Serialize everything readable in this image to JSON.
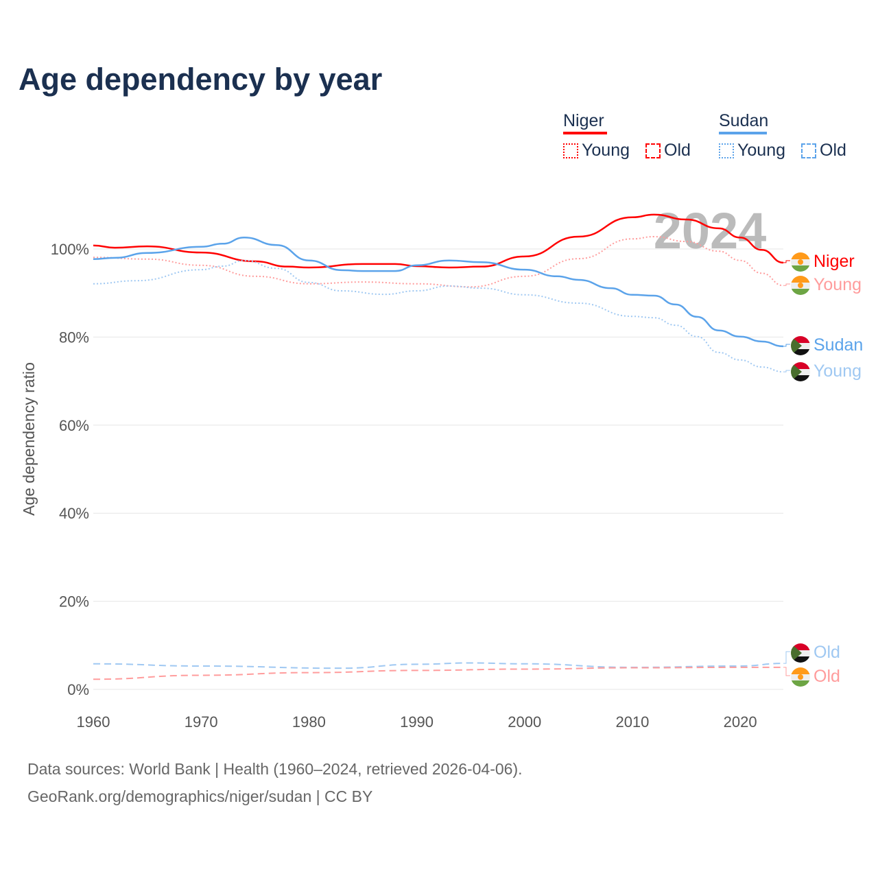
{
  "title": "Age dependency by year",
  "legend": {
    "countries": [
      {
        "name": "Niger",
        "color": "#ff0000",
        "young": "Young",
        "old": "Old"
      },
      {
        "name": "Sudan",
        "color": "#5ba3ea",
        "young": "Young",
        "old": "Old"
      }
    ]
  },
  "footer": {
    "line1": "Data sources: World Bank | Health (1960–2024, retrieved 2026-04-06).",
    "line2": "GeoRank.org/demographics/niger/sudan | CC BY"
  },
  "chart_data": {
    "type": "line",
    "title": "Age dependency by year",
    "ylabel": "Age dependency ratio",
    "xlabel": "",
    "watermark": "2024",
    "xlim": [
      1960,
      2024
    ],
    "ylim": [
      0,
      110
    ],
    "xticks": [
      "1960",
      "1970",
      "1980",
      "1990",
      "2000",
      "2010",
      "2020"
    ],
    "yticks": [
      "0%",
      "20%",
      "40%",
      "60%",
      "80%",
      "100%"
    ],
    "grid": true,
    "legend_placement": "top-right",
    "series": [
      {
        "name": "Niger",
        "label": "Niger",
        "country": "Niger",
        "color": "#ff0000",
        "style": "solid",
        "x": [
          1960,
          1962,
          1965,
          1970,
          1975,
          1978,
          1980,
          1985,
          1988,
          1990,
          1993,
          1996,
          2000,
          2005,
          2010,
          2012,
          2015,
          2018,
          2020,
          2022,
          2024
        ],
        "y": [
          100.8,
          100.3,
          100.6,
          99.2,
          97.2,
          96.0,
          95.8,
          96.6,
          96.6,
          96.1,
          95.8,
          96.0,
          98.3,
          102.8,
          107.2,
          107.8,
          106.7,
          104.7,
          102.6,
          99.8,
          96.9
        ]
      },
      {
        "name": "Niger Young",
        "label": "Young",
        "country": "Niger",
        "color": "#ff9c9c",
        "style": "dotted",
        "x": [
          1960,
          1965,
          1970,
          1975,
          1980,
          1985,
          1990,
          1995,
          2000,
          2005,
          2010,
          2012,
          2015,
          2018,
          2020,
          2022,
          2024
        ],
        "y": [
          98.1,
          97.7,
          96.3,
          93.8,
          92.1,
          92.5,
          92.1,
          91.4,
          93.8,
          97.8,
          102.3,
          102.8,
          101.7,
          99.5,
          97.4,
          94.5,
          91.7
        ]
      },
      {
        "name": "Sudan",
        "label": "Sudan",
        "country": "Sudan",
        "color": "#5ba3ea",
        "style": "solid",
        "x": [
          1960,
          1962,
          1965,
          1970,
          1972,
          1974,
          1977,
          1980,
          1983,
          1985,
          1988,
          1990,
          1993,
          1996,
          2000,
          2003,
          2005,
          2008,
          2010,
          2012,
          2014,
          2016,
          2018,
          2020,
          2022,
          2024
        ],
        "y": [
          97.7,
          98.0,
          99.1,
          100.5,
          101.2,
          102.6,
          100.9,
          97.4,
          95.2,
          95.0,
          95.0,
          96.3,
          97.4,
          97.0,
          95.3,
          93.8,
          93.0,
          91.1,
          89.6,
          89.4,
          87.4,
          84.6,
          81.5,
          80.1,
          79.0,
          77.9
        ]
      },
      {
        "name": "Sudan Young",
        "label": "Young",
        "country": "Sudan",
        "color": "#9fc8f2",
        "style": "dotted",
        "x": [
          1960,
          1964,
          1970,
          1972,
          1974,
          1977,
          1980,
          1983,
          1987,
          1990,
          1993,
          1996,
          2000,
          2005,
          2010,
          2012,
          2014,
          2016,
          2018,
          2020,
          2022,
          2024
        ],
        "y": [
          92.1,
          92.8,
          95.3,
          96.1,
          97.4,
          95.6,
          92.4,
          90.5,
          89.7,
          90.5,
          91.6,
          91.1,
          89.6,
          87.7,
          84.7,
          84.4,
          82.7,
          80.1,
          76.5,
          74.8,
          73.2,
          72.1
        ]
      },
      {
        "name": "Sudan Old",
        "label": "Old",
        "country": "Sudan",
        "color": "#9fc8f2",
        "style": "dashed",
        "x": [
          1960,
          1970,
          1983,
          1990,
          1995,
          2000,
          2010,
          2020,
          2024
        ],
        "y": [
          5.8,
          5.3,
          4.8,
          5.7,
          6.0,
          5.8,
          5.0,
          5.3,
          5.9
        ]
      },
      {
        "name": "Niger Old",
        "label": "Old",
        "country": "Niger",
        "color": "#ff9c9c",
        "style": "dashed",
        "x": [
          1960,
          1970,
          1980,
          1990,
          2000,
          2010,
          2020,
          2024
        ],
        "y": [
          2.3,
          3.2,
          3.8,
          4.3,
          4.6,
          4.9,
          5.0,
          5.0
        ]
      }
    ]
  }
}
